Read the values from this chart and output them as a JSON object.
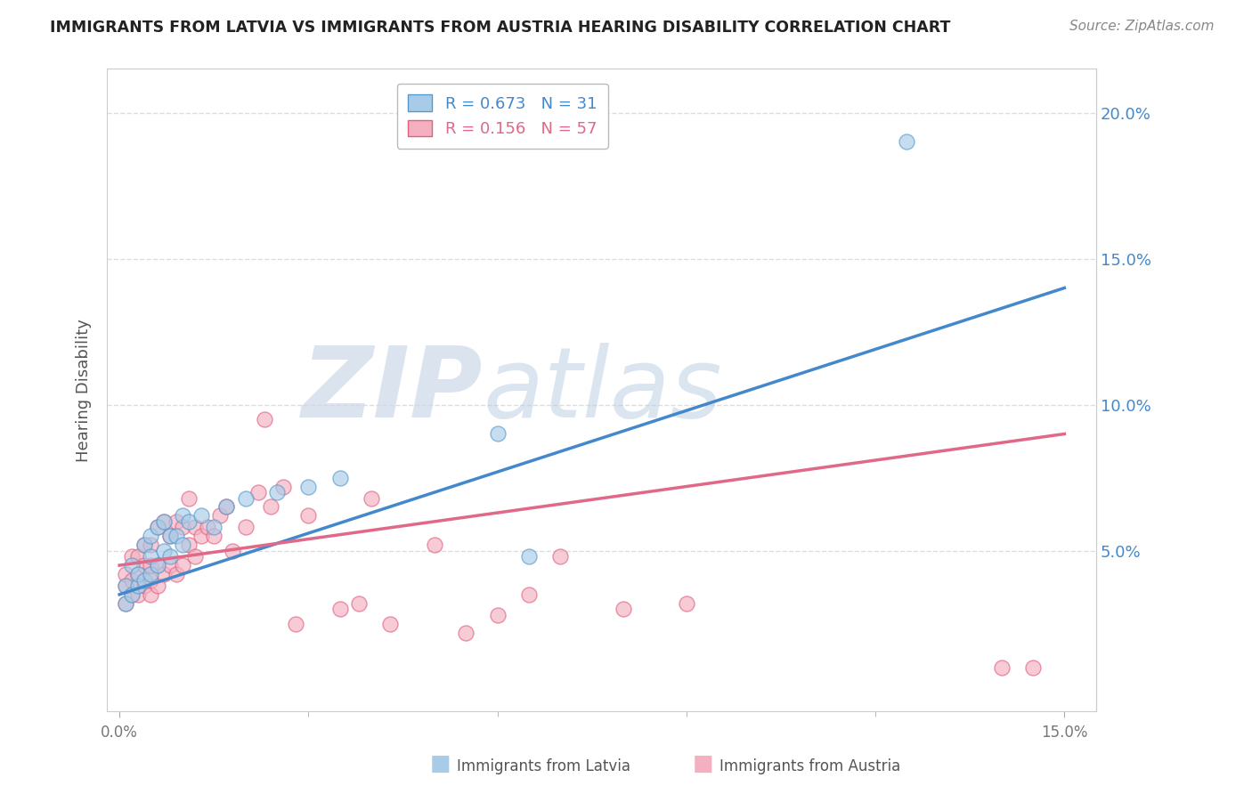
{
  "title": "IMMIGRANTS FROM LATVIA VS IMMIGRANTS FROM AUSTRIA HEARING DISABILITY CORRELATION CHART",
  "source": "Source: ZipAtlas.com",
  "xlabel_latvia": "Immigrants from Latvia",
  "xlabel_austria": "Immigrants from Austria",
  "ylabel": "Hearing Disability",
  "xlim": [
    -0.002,
    0.155
  ],
  "ylim": [
    -0.005,
    0.215
  ],
  "yticks_right": [
    0.05,
    0.1,
    0.15,
    0.2
  ],
  "ytick_labels_right": [
    "5.0%",
    "10.0%",
    "15.0%",
    "20.0%"
  ],
  "latvia_R": 0.673,
  "latvia_N": 31,
  "austria_R": 0.156,
  "austria_N": 57,
  "latvia_color": "#a8cce8",
  "austria_color": "#f4b0c0",
  "latvia_edge_color": "#5599cc",
  "austria_edge_color": "#e06080",
  "latvia_line_color": "#4488cc",
  "austria_line_color": "#e06888",
  "watermark_zip": "ZIP",
  "watermark_atlas": "atlas",
  "watermark_color": "#d0e4f0",
  "background_color": "#ffffff",
  "grid_color": "#dddddd",
  "latvia_scatter_x": [
    0.001,
    0.001,
    0.002,
    0.002,
    0.003,
    0.003,
    0.004,
    0.004,
    0.005,
    0.005,
    0.005,
    0.006,
    0.006,
    0.007,
    0.007,
    0.008,
    0.008,
    0.009,
    0.01,
    0.01,
    0.011,
    0.013,
    0.015,
    0.017,
    0.02,
    0.025,
    0.03,
    0.035,
    0.06,
    0.065,
    0.125
  ],
  "latvia_scatter_y": [
    0.032,
    0.038,
    0.035,
    0.045,
    0.038,
    0.042,
    0.04,
    0.052,
    0.042,
    0.048,
    0.055,
    0.045,
    0.058,
    0.05,
    0.06,
    0.048,
    0.055,
    0.055,
    0.052,
    0.062,
    0.06,
    0.062,
    0.058,
    0.065,
    0.068,
    0.07,
    0.072,
    0.075,
    0.09,
    0.048,
    0.19
  ],
  "austria_scatter_x": [
    0.001,
    0.001,
    0.001,
    0.002,
    0.002,
    0.002,
    0.003,
    0.003,
    0.003,
    0.004,
    0.004,
    0.004,
    0.005,
    0.005,
    0.005,
    0.005,
    0.006,
    0.006,
    0.006,
    0.007,
    0.007,
    0.008,
    0.008,
    0.009,
    0.009,
    0.01,
    0.01,
    0.011,
    0.011,
    0.012,
    0.012,
    0.013,
    0.014,
    0.015,
    0.016,
    0.017,
    0.018,
    0.02,
    0.022,
    0.023,
    0.024,
    0.026,
    0.028,
    0.03,
    0.035,
    0.038,
    0.04,
    0.043,
    0.05,
    0.055,
    0.06,
    0.065,
    0.07,
    0.08,
    0.09,
    0.14,
    0.145
  ],
  "austria_scatter_y": [
    0.032,
    0.038,
    0.042,
    0.035,
    0.04,
    0.048,
    0.035,
    0.042,
    0.048,
    0.038,
    0.045,
    0.052,
    0.035,
    0.04,
    0.045,
    0.052,
    0.038,
    0.045,
    0.058,
    0.042,
    0.06,
    0.045,
    0.055,
    0.042,
    0.06,
    0.045,
    0.058,
    0.052,
    0.068,
    0.048,
    0.058,
    0.055,
    0.058,
    0.055,
    0.062,
    0.065,
    0.05,
    0.058,
    0.07,
    0.095,
    0.065,
    0.072,
    0.025,
    0.062,
    0.03,
    0.032,
    0.068,
    0.025,
    0.052,
    0.022,
    0.028,
    0.035,
    0.048,
    0.03,
    0.032,
    0.01,
    0.01
  ]
}
